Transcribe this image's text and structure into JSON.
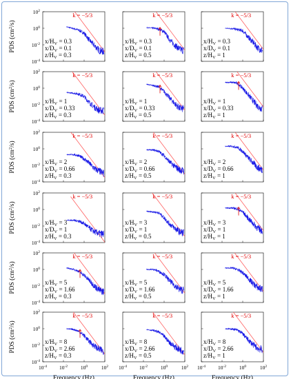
{
  "colors": {
    "spectrum": "#1a1ae6",
    "slope_line": "#ff6060",
    "arrow": "#e02020",
    "frame": "#7fa6d6"
  },
  "y_axis_label_parts": {
    "base": "PDS (cm",
    "sup": "2",
    "tail": "/s)"
  },
  "x_axis_label": "Frequency (Hz)",
  "slope_label": "k = −5/3",
  "y_ticks": [
    {
      "base": "10",
      "exp": "2"
    },
    {
      "base": "10",
      "exp": "0"
    },
    {
      "base": "10",
      "exp": "-2"
    },
    {
      "base": "10",
      "exp": "-4"
    }
  ],
  "x_ticks": [
    {
      "base": "10",
      "exp": "-4"
    },
    {
      "base": "10",
      "exp": "-2"
    },
    {
      "base": "10",
      "exp": "0"
    },
    {
      "base": "10",
      "exp": "2"
    }
  ],
  "chart_data": {
    "type": "line",
    "layout_grid": "6 rows x 3 columns of log-log power density spectra",
    "xscale": "log",
    "yscale": "log",
    "xlim": [
      0.0001,
      100
    ],
    "ylim": [
      0.0001,
      100
    ],
    "reference_slope": -1.6667,
    "panels": [
      {
        "xH": "0.3",
        "xD": "0.1",
        "zH": "0.3",
        "arrow": false,
        "spectrum": [
          [
            0.02,
            1.5
          ],
          [
            0.1,
            0.9
          ],
          [
            0.3,
            0.6
          ],
          [
            1,
            0.25
          ],
          [
            3,
            0.04
          ],
          [
            10,
            0.008
          ],
          [
            30,
            0.002
          ],
          [
            80,
            0.0015
          ]
        ]
      },
      {
        "xH": "0.3",
        "xD": "0.1",
        "zH": "0.5",
        "arrow": true,
        "spectrum": [
          [
            0.02,
            1.2
          ],
          [
            0.1,
            1.0
          ],
          [
            0.3,
            0.8
          ],
          [
            1,
            0.4
          ],
          [
            3,
            0.05
          ],
          [
            10,
            0.01
          ],
          [
            30,
            0.003
          ],
          [
            80,
            0.002
          ]
        ]
      },
      {
        "xH": "0.3",
        "xD": "0.1",
        "zH": "1",
        "arrow": false,
        "spectrum": [
          [
            0.02,
            1.0
          ],
          [
            0.1,
            0.9
          ],
          [
            0.3,
            0.7
          ],
          [
            1,
            0.5
          ],
          [
            3,
            0.1
          ],
          [
            10,
            0.02
          ],
          [
            30,
            0.004
          ],
          [
            80,
            0.002
          ]
        ]
      },
      {
        "xH": "1",
        "xD": "0.33",
        "zH": "0.3",
        "arrow": false,
        "spectrum": [
          [
            0.02,
            0.3
          ],
          [
            0.1,
            0.25
          ],
          [
            0.3,
            0.2
          ],
          [
            1,
            0.1
          ],
          [
            3,
            0.02
          ],
          [
            10,
            0.005
          ],
          [
            30,
            0.002
          ],
          [
            80,
            0.002
          ]
        ]
      },
      {
        "xH": "1",
        "xD": "0.33",
        "zH": "0.5",
        "arrow": true,
        "spectrum": [
          [
            0.02,
            3
          ],
          [
            0.1,
            2
          ],
          [
            0.3,
            1.5
          ],
          [
            1,
            0.4
          ],
          [
            3,
            0.08
          ],
          [
            10,
            0.015
          ],
          [
            30,
            0.004
          ],
          [
            80,
            0.003
          ]
        ]
      },
      {
        "xH": "1",
        "xD": "0.33",
        "zH": "1",
        "arrow": true,
        "spectrum": [
          [
            0.02,
            5
          ],
          [
            0.1,
            5
          ],
          [
            0.3,
            4
          ],
          [
            1,
            1
          ],
          [
            3,
            0.2
          ],
          [
            10,
            0.03
          ],
          [
            30,
            0.006
          ],
          [
            80,
            0.003
          ]
        ]
      },
      {
        "xH": "2",
        "xD": "0.66",
        "zH": "0.3",
        "arrow": false,
        "spectrum": [
          [
            0.02,
            0.2
          ],
          [
            0.1,
            0.2
          ],
          [
            0.3,
            0.15
          ],
          [
            1,
            0.06
          ],
          [
            3,
            0.02
          ],
          [
            10,
            0.004
          ],
          [
            30,
            0.002
          ],
          [
            80,
            0.001
          ]
        ]
      },
      {
        "xH": "2",
        "xD": "0.66",
        "zH": "0.5",
        "arrow": false,
        "spectrum": [
          [
            0.02,
            0.8
          ],
          [
            0.1,
            0.7
          ],
          [
            0.3,
            0.5
          ],
          [
            1,
            0.15
          ],
          [
            3,
            0.03
          ],
          [
            10,
            0.008
          ],
          [
            30,
            0.003
          ],
          [
            80,
            0.002
          ]
        ]
      },
      {
        "xH": "2",
        "xD": "0.66",
        "zH": "1",
        "arrow": false,
        "spectrum": [
          [
            0.02,
            2
          ],
          [
            0.1,
            2
          ],
          [
            0.3,
            1.5
          ],
          [
            1,
            0.5
          ],
          [
            3,
            0.1
          ],
          [
            10,
            0.02
          ],
          [
            30,
            0.005
          ],
          [
            80,
            0.003
          ]
        ]
      },
      {
        "xH": "3",
        "xD": "1",
        "zH": "0.3",
        "arrow": false,
        "spectrum": [
          [
            0.02,
            0.05
          ],
          [
            0.1,
            0.05
          ],
          [
            0.3,
            0.04
          ],
          [
            1,
            0.02
          ],
          [
            3,
            0.006
          ],
          [
            10,
            0.002
          ],
          [
            30,
            0.0012
          ],
          [
            80,
            0.001
          ]
        ]
      },
      {
        "xH": "3",
        "xD": "1",
        "zH": "0.5",
        "arrow": false,
        "spectrum": [
          [
            0.02,
            0.6
          ],
          [
            0.1,
            0.5
          ],
          [
            0.3,
            0.4
          ],
          [
            1,
            0.1
          ],
          [
            3,
            0.02
          ],
          [
            10,
            0.006
          ],
          [
            30,
            0.002
          ],
          [
            80,
            0.0015
          ]
        ]
      },
      {
        "xH": "3",
        "xD": "1",
        "zH": "1",
        "arrow": true,
        "spectrum": [
          [
            0.02,
            1.5
          ],
          [
            0.1,
            1.5
          ],
          [
            0.3,
            1.2
          ],
          [
            1,
            0.5
          ],
          [
            3,
            0.1
          ],
          [
            10,
            0.02
          ],
          [
            30,
            0.005
          ],
          [
            80,
            0.003
          ]
        ]
      },
      {
        "xH": "5",
        "xD": "1.66",
        "zH": "0.3",
        "arrow": true,
        "spectrum": [
          [
            0.02,
            1.5
          ],
          [
            0.1,
            1
          ],
          [
            0.3,
            0.6
          ],
          [
            1,
            0.2
          ],
          [
            3,
            0.05
          ],
          [
            10,
            0.01
          ],
          [
            30,
            0.003
          ],
          [
            80,
            0.002
          ]
        ]
      },
      {
        "xH": "5",
        "xD": "1.66",
        "zH": "0.5",
        "arrow": false,
        "spectrum": [
          [
            0.02,
            1
          ],
          [
            0.1,
            1
          ],
          [
            0.3,
            0.6
          ],
          [
            1,
            0.25
          ],
          [
            3,
            0.05
          ],
          [
            10,
            0.012
          ],
          [
            30,
            0.004
          ],
          [
            80,
            0.003
          ]
        ]
      },
      {
        "xH": "5",
        "xD": "1.66",
        "zH": "1",
        "arrow": false,
        "spectrum": [
          [
            0.02,
            1.5
          ],
          [
            0.1,
            1.5
          ],
          [
            0.3,
            1
          ],
          [
            1,
            0.4
          ],
          [
            3,
            0.1
          ],
          [
            10,
            0.02
          ],
          [
            30,
            0.006
          ],
          [
            80,
            0.004
          ]
        ]
      },
      {
        "xH": "8",
        "xD": "2.66",
        "zH": "0.3",
        "arrow": true,
        "spectrum": [
          [
            0.02,
            1
          ],
          [
            0.1,
            0.8
          ],
          [
            0.3,
            0.5
          ],
          [
            1,
            0.15
          ],
          [
            3,
            0.03
          ],
          [
            10,
            0.008
          ],
          [
            30,
            0.003
          ],
          [
            80,
            0.002
          ]
        ]
      },
      {
        "xH": "8",
        "xD": "2.66",
        "zH": "0.5",
        "arrow": false,
        "spectrum": [
          [
            0.02,
            0.8
          ],
          [
            0.1,
            0.6
          ],
          [
            0.3,
            0.4
          ],
          [
            1,
            0.12
          ],
          [
            3,
            0.025
          ],
          [
            10,
            0.007
          ],
          [
            30,
            0.003
          ],
          [
            80,
            0.002
          ]
        ]
      },
      {
        "xH": "8",
        "xD": "2.66",
        "zH": "1",
        "arrow": false,
        "spectrum": [
          [
            0.02,
            1
          ],
          [
            0.1,
            0.9
          ],
          [
            0.3,
            0.7
          ],
          [
            1,
            0.25
          ],
          [
            3,
            0.05
          ],
          [
            10,
            0.012
          ],
          [
            30,
            0.004
          ],
          [
            80,
            0.003
          ]
        ]
      }
    ]
  }
}
